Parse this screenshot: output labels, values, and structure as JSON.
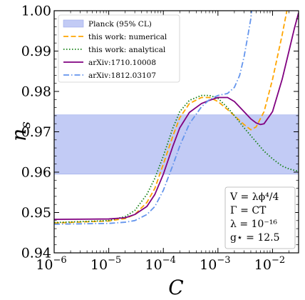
{
  "chart_data": {
    "type": "line",
    "xlabel": "C",
    "ylabel": "n_s",
    "xscale": "log",
    "xlim": [
      1e-06,
      0.03
    ],
    "ylim": [
      0.94,
      1.0
    ],
    "x_ticks": [
      {
        "value": 1e-06,
        "base": "10",
        "exp": "−6"
      },
      {
        "value": 1e-05,
        "base": "10",
        "exp": "−5"
      },
      {
        "value": 0.0001,
        "base": "10",
        "exp": "−4"
      },
      {
        "value": 0.001,
        "base": "10",
        "exp": "−3"
      },
      {
        "value": 0.01,
        "base": "10",
        "exp": "−2"
      }
    ],
    "y_ticks": [
      "0.94",
      "0.95",
      "0.96",
      "0.97",
      "0.98",
      "0.99",
      "1.00"
    ],
    "band": {
      "name": "Planck (95% CL)",
      "ymin": 0.9595,
      "ymax": 0.9742,
      "color": "#c2cbf5"
    },
    "series": [
      {
        "name": "this work: numerical",
        "color": "#ffa500",
        "dash": "dashed",
        "points": [
          [
            1e-06,
            0.9474
          ],
          [
            1e-05,
            0.9479
          ],
          [
            2e-05,
            0.9485
          ],
          [
            3e-05,
            0.9495
          ],
          [
            5e-05,
            0.9525
          ],
          [
            7e-05,
            0.956
          ],
          [
            0.0001,
            0.962
          ],
          [
            0.00015,
            0.969
          ],
          [
            0.0002,
            0.9735
          ],
          [
            0.0003,
            0.977
          ],
          [
            0.0005,
            0.9785
          ],
          [
            0.0007,
            0.9785
          ],
          [
            0.001,
            0.9775
          ],
          [
            0.0015,
            0.9755
          ],
          [
            0.002,
            0.974
          ],
          [
            0.003,
            0.9718
          ],
          [
            0.004,
            0.9705
          ],
          [
            0.005,
            0.9712
          ],
          [
            0.007,
            0.975
          ],
          [
            0.01,
            0.983
          ],
          [
            0.015,
            0.994
          ],
          [
            0.018,
            0.9995
          ],
          [
            0.02,
            1.002
          ]
        ]
      },
      {
        "name": "this work: analytical",
        "color": "#138013",
        "dash": "dotted",
        "points": [
          [
            1e-06,
            0.9475
          ],
          [
            1e-05,
            0.948
          ],
          [
            2e-05,
            0.949
          ],
          [
            3e-05,
            0.9505
          ],
          [
            5e-05,
            0.9545
          ],
          [
            7e-05,
            0.9585
          ],
          [
            0.0001,
            0.964
          ],
          [
            0.00015,
            0.971
          ],
          [
            0.0002,
            0.975
          ],
          [
            0.0003,
            0.9778
          ],
          [
            0.0005,
            0.979
          ],
          [
            0.0007,
            0.979
          ],
          [
            0.001,
            0.9783
          ],
          [
            0.0015,
            0.976
          ],
          [
            0.002,
            0.974
          ],
          [
            0.003,
            0.971
          ],
          [
            0.005,
            0.9675
          ],
          [
            0.007,
            0.9652
          ],
          [
            0.01,
            0.9633
          ],
          [
            0.015,
            0.9615
          ],
          [
            0.02,
            0.9608
          ],
          [
            0.03,
            0.9602
          ]
        ]
      },
      {
        "name": "arXiv:1710.10008",
        "color": "#800080",
        "dash": "solid",
        "points": [
          [
            1e-06,
            0.9483
          ],
          [
            1e-05,
            0.9484
          ],
          [
            2e-05,
            0.9487
          ],
          [
            3e-05,
            0.9495
          ],
          [
            5e-05,
            0.9515
          ],
          [
            7e-05,
            0.9545
          ],
          [
            0.0001,
            0.9595
          ],
          [
            0.00015,
            0.9665
          ],
          [
            0.0002,
            0.971
          ],
          [
            0.0003,
            0.9748
          ],
          [
            0.0005,
            0.977
          ],
          [
            0.0007,
            0.9778
          ],
          [
            0.001,
            0.9785
          ],
          [
            0.0015,
            0.9785
          ],
          [
            0.002,
            0.9775
          ],
          [
            0.003,
            0.975
          ],
          [
            0.004,
            0.9732
          ],
          [
            0.005,
            0.9722
          ],
          [
            0.006,
            0.9718
          ],
          [
            0.007,
            0.972
          ],
          [
            0.01,
            0.975
          ],
          [
            0.015,
            0.983
          ],
          [
            0.02,
            0.99
          ],
          [
            0.025,
            0.9955
          ],
          [
            0.03,
            0.9995
          ]
        ]
      },
      {
        "name": "arXiv:1812.03107",
        "color": "#6495ed",
        "dash": "dashdot",
        "points": [
          [
            1e-06,
            0.9471
          ],
          [
            1e-05,
            0.9473
          ],
          [
            2e-05,
            0.9476
          ],
          [
            3e-05,
            0.948
          ],
          [
            5e-05,
            0.9495
          ],
          [
            7e-05,
            0.9515
          ],
          [
            0.0001,
            0.9555
          ],
          [
            0.00015,
            0.9618
          ],
          [
            0.0002,
            0.9665
          ],
          [
            0.0003,
            0.972
          ],
          [
            0.0005,
            0.9762
          ],
          [
            0.0007,
            0.978
          ],
          [
            0.001,
            0.979
          ],
          [
            0.0015,
            0.9795
          ],
          [
            0.002,
            0.981
          ],
          [
            0.0025,
            0.984
          ],
          [
            0.003,
            0.9885
          ],
          [
            0.0035,
            0.9935
          ],
          [
            0.004,
            0.998
          ],
          [
            0.0043,
            1.002
          ]
        ]
      }
    ],
    "legend_position": "upper-left",
    "legend_entries": [
      "Planck (95% CL)",
      "this work: numerical",
      "this work: analytical",
      "arXiv:1710.10008",
      "arXiv:1812.03107"
    ],
    "annotation": {
      "position": "lower-right",
      "lines": [
        "V = λϕ⁴/4",
        "Γ = CT",
        "λ = 10⁻¹⁶",
        "g⋆ = 12.5"
      ]
    }
  }
}
